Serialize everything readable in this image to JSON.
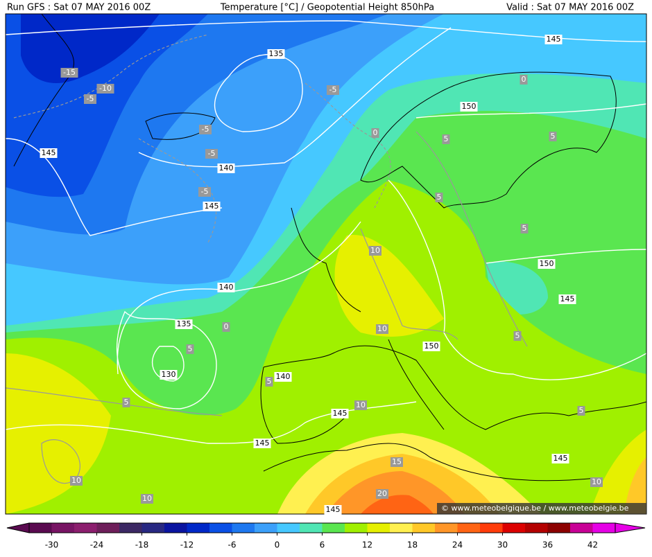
{
  "header": {
    "left": "Run GFS : Sat 07 MAY 2016 00Z",
    "center": "Temperature [°C] / Geopotential Height 850hPa",
    "right": "Valid : Sat 07 MAY 2016 00Z"
  },
  "map": {
    "height_labels": [
      "135",
      "145",
      "150",
      "140",
      "145",
      "145",
      "140",
      "135",
      "130",
      "140",
      "145",
      "145",
      "150",
      "150",
      "145",
      "145",
      "145"
    ],
    "temperature_labels": [
      "-15",
      "-10",
      "-5",
      "-5",
      "-5",
      "-5",
      "-5",
      "0",
      "0",
      "5",
      "5",
      "5",
      "5",
      "10",
      "10",
      "5",
      "0",
      "5",
      "5",
      "10",
      "15",
      "20",
      "10",
      "10",
      "5",
      "5",
      "10"
    ],
    "watermark": "© www.meteobelgique.be / www.meteobelgie.be"
  },
  "colorbar": {
    "range": [
      -33,
      45
    ],
    "ticks": [
      -30,
      -24,
      -18,
      -12,
      -6,
      0,
      6,
      12,
      18,
      24,
      30,
      36,
      42
    ],
    "colors": [
      "#5a0a50",
      "#781464",
      "#8c1e6e",
      "#6e1e5a",
      "#3c2864",
      "#282882",
      "#0a14a0",
      "#0028c8",
      "#0a50e6",
      "#1e78f0",
      "#3ca0fa",
      "#46c8ff",
      "#50e6b4",
      "#5ae650",
      "#a0f000",
      "#e6f000",
      "#fff050",
      "#ffc828",
      "#ff9628",
      "#ff6414",
      "#ff3c0a",
      "#dc0000",
      "#b40000",
      "#8c0000",
      "#c80096",
      "#e600e6"
    ]
  }
}
